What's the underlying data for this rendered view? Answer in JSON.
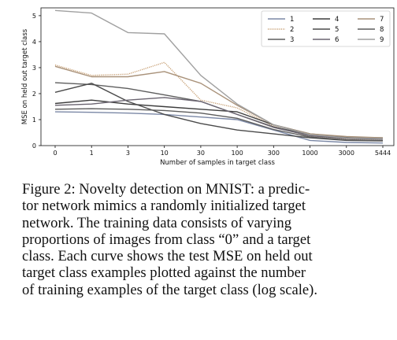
{
  "chart_data": {
    "type": "line",
    "title": "",
    "xlabel": "Number of samples in target class",
    "ylabel": "MSE on held out target class",
    "x": [
      0,
      1,
      3,
      10,
      30,
      100,
      300,
      1000,
      3000,
      5444
    ],
    "x_tick_labels": [
      "0",
      "1",
      "3",
      "10",
      "30",
      "100",
      "300",
      "1000",
      "3000",
      "5444"
    ],
    "y_ticks": [
      0,
      1,
      2,
      3,
      4,
      5
    ],
    "ylim": [
      0,
      5.3
    ],
    "x_scale": "log",
    "grid": false,
    "legend_position": "top-right",
    "series": [
      {
        "name": "1",
        "color": "#7b88a6",
        "style": "solid",
        "values": [
          1.3,
          1.28,
          1.25,
          1.2,
          1.1,
          1.0,
          0.6,
          0.2,
          0.12,
          0.1
        ]
      },
      {
        "name": "2",
        "color": "#c8a176",
        "style": "dotted",
        "values": [
          3.1,
          2.7,
          2.75,
          3.2,
          1.75,
          1.45,
          0.75,
          0.35,
          0.25,
          0.25
        ]
      },
      {
        "name": "3",
        "color": "#5e5e5e",
        "style": "solid",
        "values": [
          2.42,
          2.35,
          2.2,
          1.95,
          1.7,
          1.2,
          0.72,
          0.42,
          0.3,
          0.28
        ]
      },
      {
        "name": "4",
        "color": "#3d3d3d",
        "style": "solid",
        "values": [
          1.62,
          1.75,
          1.6,
          1.5,
          1.4,
          1.3,
          0.8,
          0.45,
          0.32,
          0.3
        ]
      },
      {
        "name": "5",
        "color": "#4a4a4a",
        "style": "solid",
        "values": [
          2.05,
          2.4,
          1.7,
          1.2,
          0.85,
          0.6,
          0.45,
          0.3,
          0.2,
          0.18
        ]
      },
      {
        "name": "6",
        "color": "#6a6470",
        "style": "solid",
        "values": [
          1.55,
          1.6,
          1.75,
          1.85,
          1.7,
          1.2,
          0.7,
          0.38,
          0.28,
          0.25
        ]
      },
      {
        "name": "7",
        "color": "#a9927a",
        "style": "solid",
        "values": [
          3.05,
          2.65,
          2.65,
          2.85,
          2.4,
          1.55,
          0.8,
          0.45,
          0.35,
          0.3
        ]
      },
      {
        "name": "8",
        "color": "#5c5c5c",
        "style": "solid",
        "values": [
          1.4,
          1.42,
          1.4,
          1.35,
          1.25,
          1.05,
          0.62,
          0.33,
          0.22,
          0.2
        ]
      },
      {
        "name": "9",
        "color": "#a0a0a0",
        "style": "solid",
        "values": [
          5.2,
          5.1,
          4.35,
          4.3,
          2.7,
          1.6,
          0.8,
          0.42,
          0.3,
          0.27
        ]
      }
    ]
  },
  "caption_lines": [
    "Figure 2: Novelty detection on MNIST: a predic-",
    "tor network mimics a randomly initialized target",
    "network.  The training data consists of varying",
    "proportions of images from class “0” and a target",
    "class. Each curve shows the test MSE on held out",
    "target class examples plotted against the number",
    "of training examples of the target class (log scale)."
  ]
}
